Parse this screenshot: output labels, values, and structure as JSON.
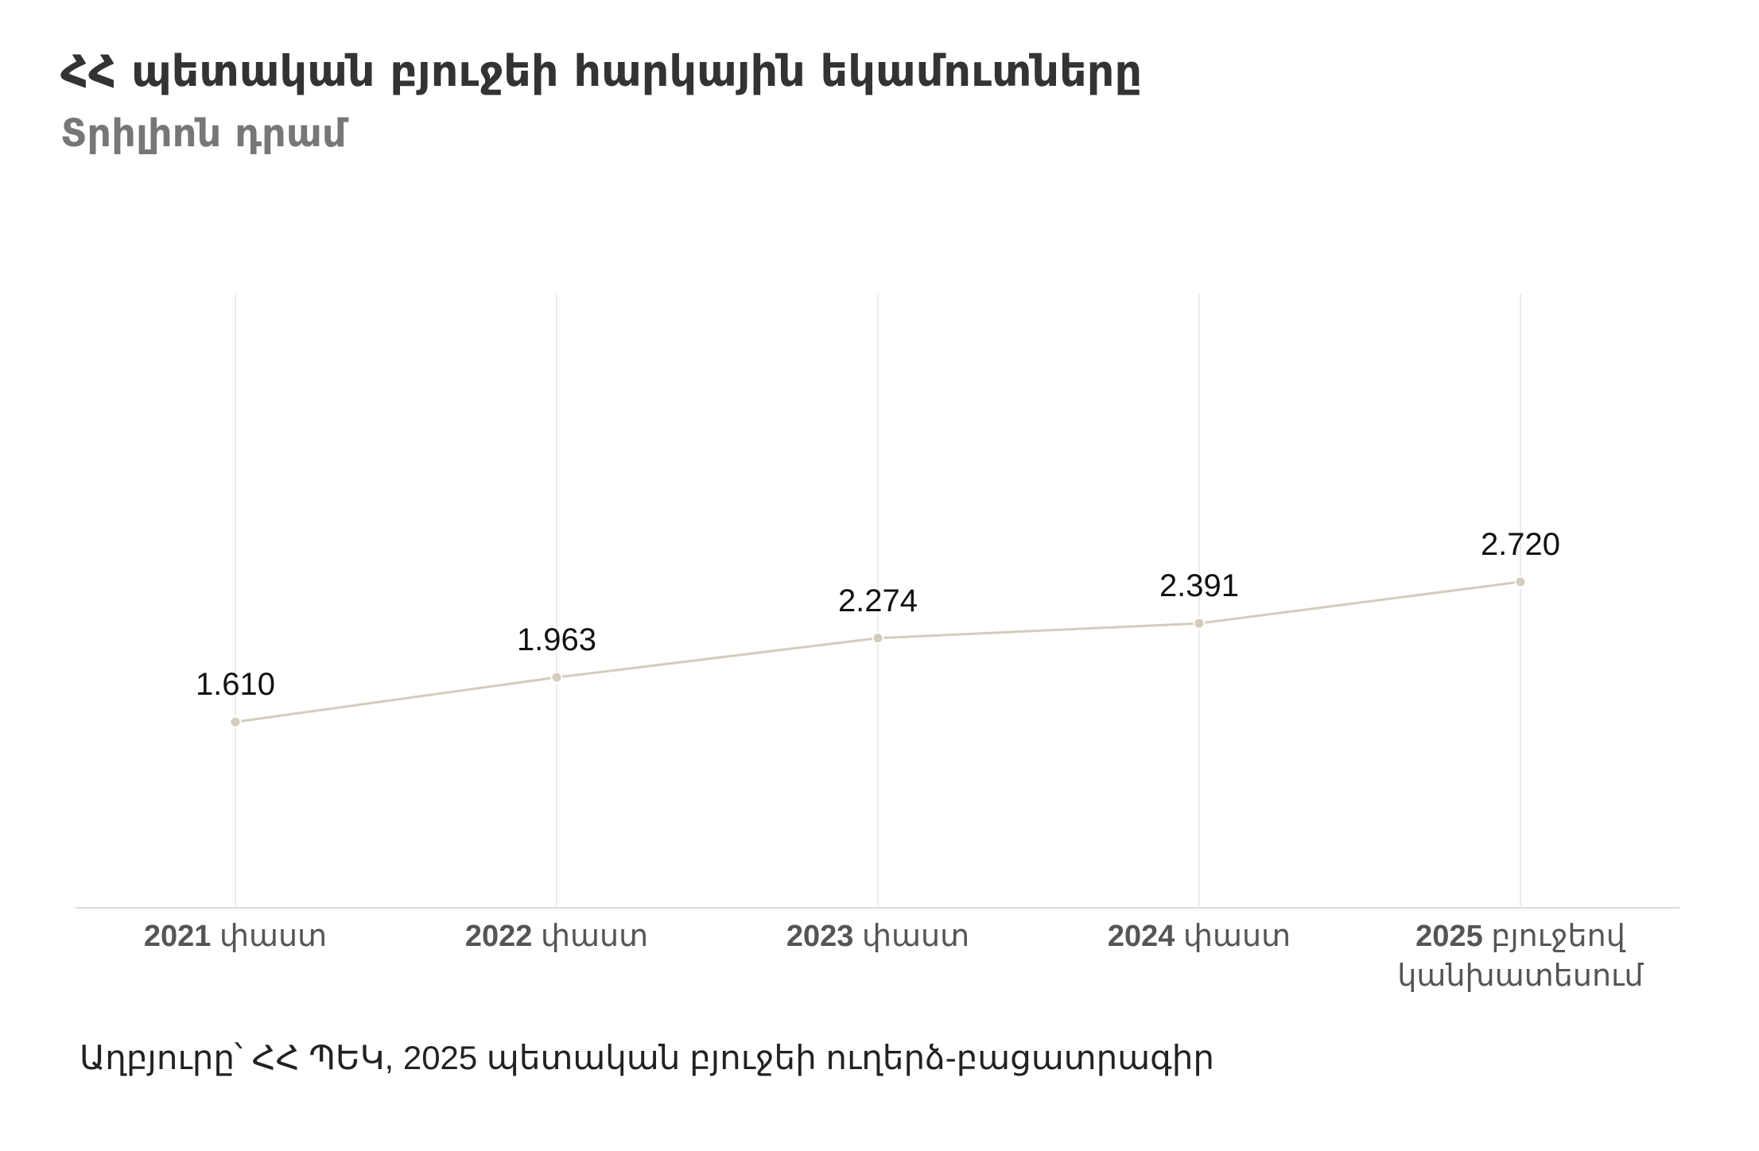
{
  "header": {
    "title": "ՀՀ պետական բյուջեի հարկային եկամուտները",
    "subtitle": "Տրիլիոն դրամ"
  },
  "footer": {
    "source": "Աղբյուրը՝ ՀՀ ՊԵԿ, 2025 պետական բյուջեի ուղերձ-բացատրագիր"
  },
  "colors": {
    "line": "#d4ccbc",
    "marker": "#d4ccbc",
    "grid": "#e6e6e6",
    "axis": "#dddddd",
    "value_label": "#111111",
    "axis_label": "#555555"
  },
  "chart_data": {
    "type": "line",
    "title": "ՀՀ պետական բյուջեի հարկային եկամուտները",
    "subtitle": "Տրիլիոն դրամ",
    "categories": [
      {
        "year": "2021",
        "rest": [
          "փաստ"
        ]
      },
      {
        "year": "2022",
        "rest": [
          "փաստ"
        ]
      },
      {
        "year": "2023",
        "rest": [
          "փաստ"
        ]
      },
      {
        "year": "2024",
        "rest": [
          "փաստ"
        ]
      },
      {
        "year": "2025",
        "rest": [
          "բյուջեով",
          "կանխատեսում"
        ]
      }
    ],
    "values": [
      1.61,
      1.963,
      2.274,
      2.391,
      2.72
    ],
    "value_labels": [
      "1.610",
      "1.963",
      "2.274",
      "2.391",
      "2.720"
    ],
    "ylim": [
      0.15,
      5.0
    ],
    "grid": "vertical",
    "legend": "none"
  }
}
